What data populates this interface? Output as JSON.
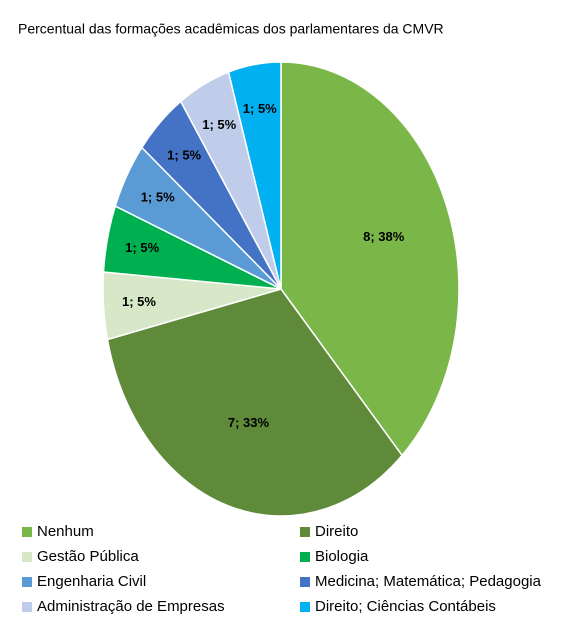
{
  "chart_data": {
    "type": "pie",
    "title": "Percentual das formações acadêmicas dos parlamentares da CMVR",
    "categories": [
      "Nenhum",
      "Direito",
      "Gestão Pública",
      "Biologia",
      "Engenharia Civil",
      "Medicina; Matemática; Pedagogia",
      "Administração de Empresas",
      "Direito; Ciências Contábeis"
    ],
    "values": [
      8,
      7,
      1,
      1,
      1,
      1,
      1,
      1
    ],
    "value_labels": [
      "8; 38%",
      "7; 33%",
      "1; 5%",
      "1; 5%",
      "1; 5%",
      "1; 5%",
      "1; 5%",
      "1; 5%"
    ],
    "colors": [
      "#7ab648",
      "#5e8a3a",
      "#d6e8c8",
      "#00b050",
      "#5b9bd5",
      "#4472c4",
      "#c0cdea",
      "#00b0f0"
    ],
    "legend": "bottom"
  }
}
